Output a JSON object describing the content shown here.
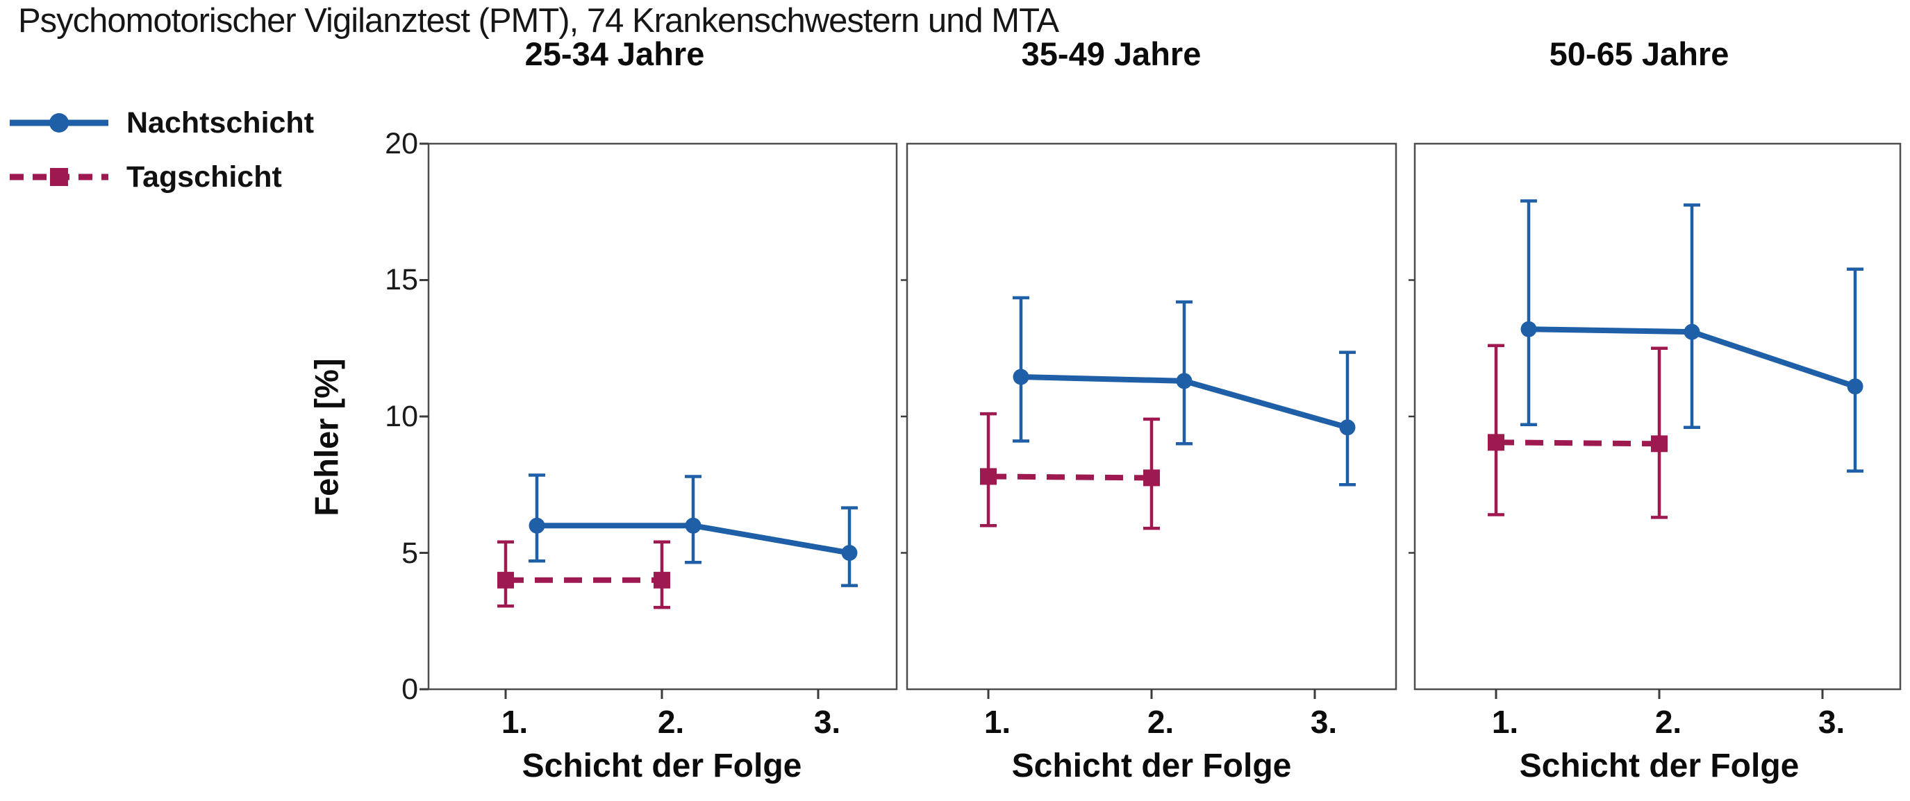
{
  "title": "Psychomotorischer Vigilanztest (PMT), 74 Krankenschwestern und MTA",
  "legend": [
    {
      "label": "Nachtschicht",
      "color": "#1f5fa8",
      "line_style": "solid",
      "marker": "circle"
    },
    {
      "label": "Tagschicht",
      "color": "#9e1950",
      "line_style": "dashed",
      "marker": "square"
    }
  ],
  "chart_data": {
    "type": "line",
    "title": "Psychomotorischer Vigilanztest (PMT), 74 Krankenschwestern und MTA",
    "ylabel": "Fehler [%]",
    "xlabel": "Schicht der Folge",
    "ylim": [
      0,
      20
    ],
    "yticks": [
      0,
      5,
      10,
      15,
      20
    ],
    "xtick_labels": [
      "1.",
      "2.",
      "3."
    ],
    "grid": false,
    "legend_position": "top-left",
    "panels": [
      {
        "title": "25-34 Jahre",
        "series": [
          {
            "name": "Nachtschicht",
            "x": [
              1.2,
              2.2,
              3.2
            ],
            "y": [
              6.0,
              6.0,
              5.0
            ],
            "err_low": [
              4.7,
              4.65,
              3.8
            ],
            "err_high": [
              7.85,
              7.8,
              6.65
            ]
          },
          {
            "name": "Tagschicht",
            "x": [
              1.0,
              2.0
            ],
            "y": [
              4.0,
              4.0
            ],
            "err_low": [
              3.05,
              3.0
            ],
            "err_high": [
              5.4,
              5.4
            ]
          }
        ]
      },
      {
        "title": "35-49 Jahre",
        "series": [
          {
            "name": "Nachtschicht",
            "x": [
              1.2,
              2.2,
              3.2
            ],
            "y": [
              11.45,
              11.3,
              9.6
            ],
            "err_low": [
              9.1,
              9.0,
              7.5
            ],
            "err_high": [
              14.35,
              14.2,
              12.35
            ]
          },
          {
            "name": "Tagschicht",
            "x": [
              1.0,
              2.0
            ],
            "y": [
              7.8,
              7.75
            ],
            "err_low": [
              6.0,
              5.9
            ],
            "err_high": [
              10.1,
              9.9
            ]
          }
        ]
      },
      {
        "title": "50-65 Jahre",
        "series": [
          {
            "name": "Nachtschicht",
            "x": [
              1.2,
              2.2,
              3.2
            ],
            "y": [
              13.2,
              13.1,
              11.1
            ],
            "err_low": [
              9.7,
              9.6,
              8.0
            ],
            "err_high": [
              17.9,
              17.75,
              15.4
            ]
          },
          {
            "name": "Tagschicht",
            "x": [
              1.0,
              2.0
            ],
            "y": [
              9.05,
              9.0
            ],
            "err_low": [
              6.4,
              6.3
            ],
            "err_high": [
              12.6,
              12.5
            ]
          }
        ]
      }
    ]
  }
}
